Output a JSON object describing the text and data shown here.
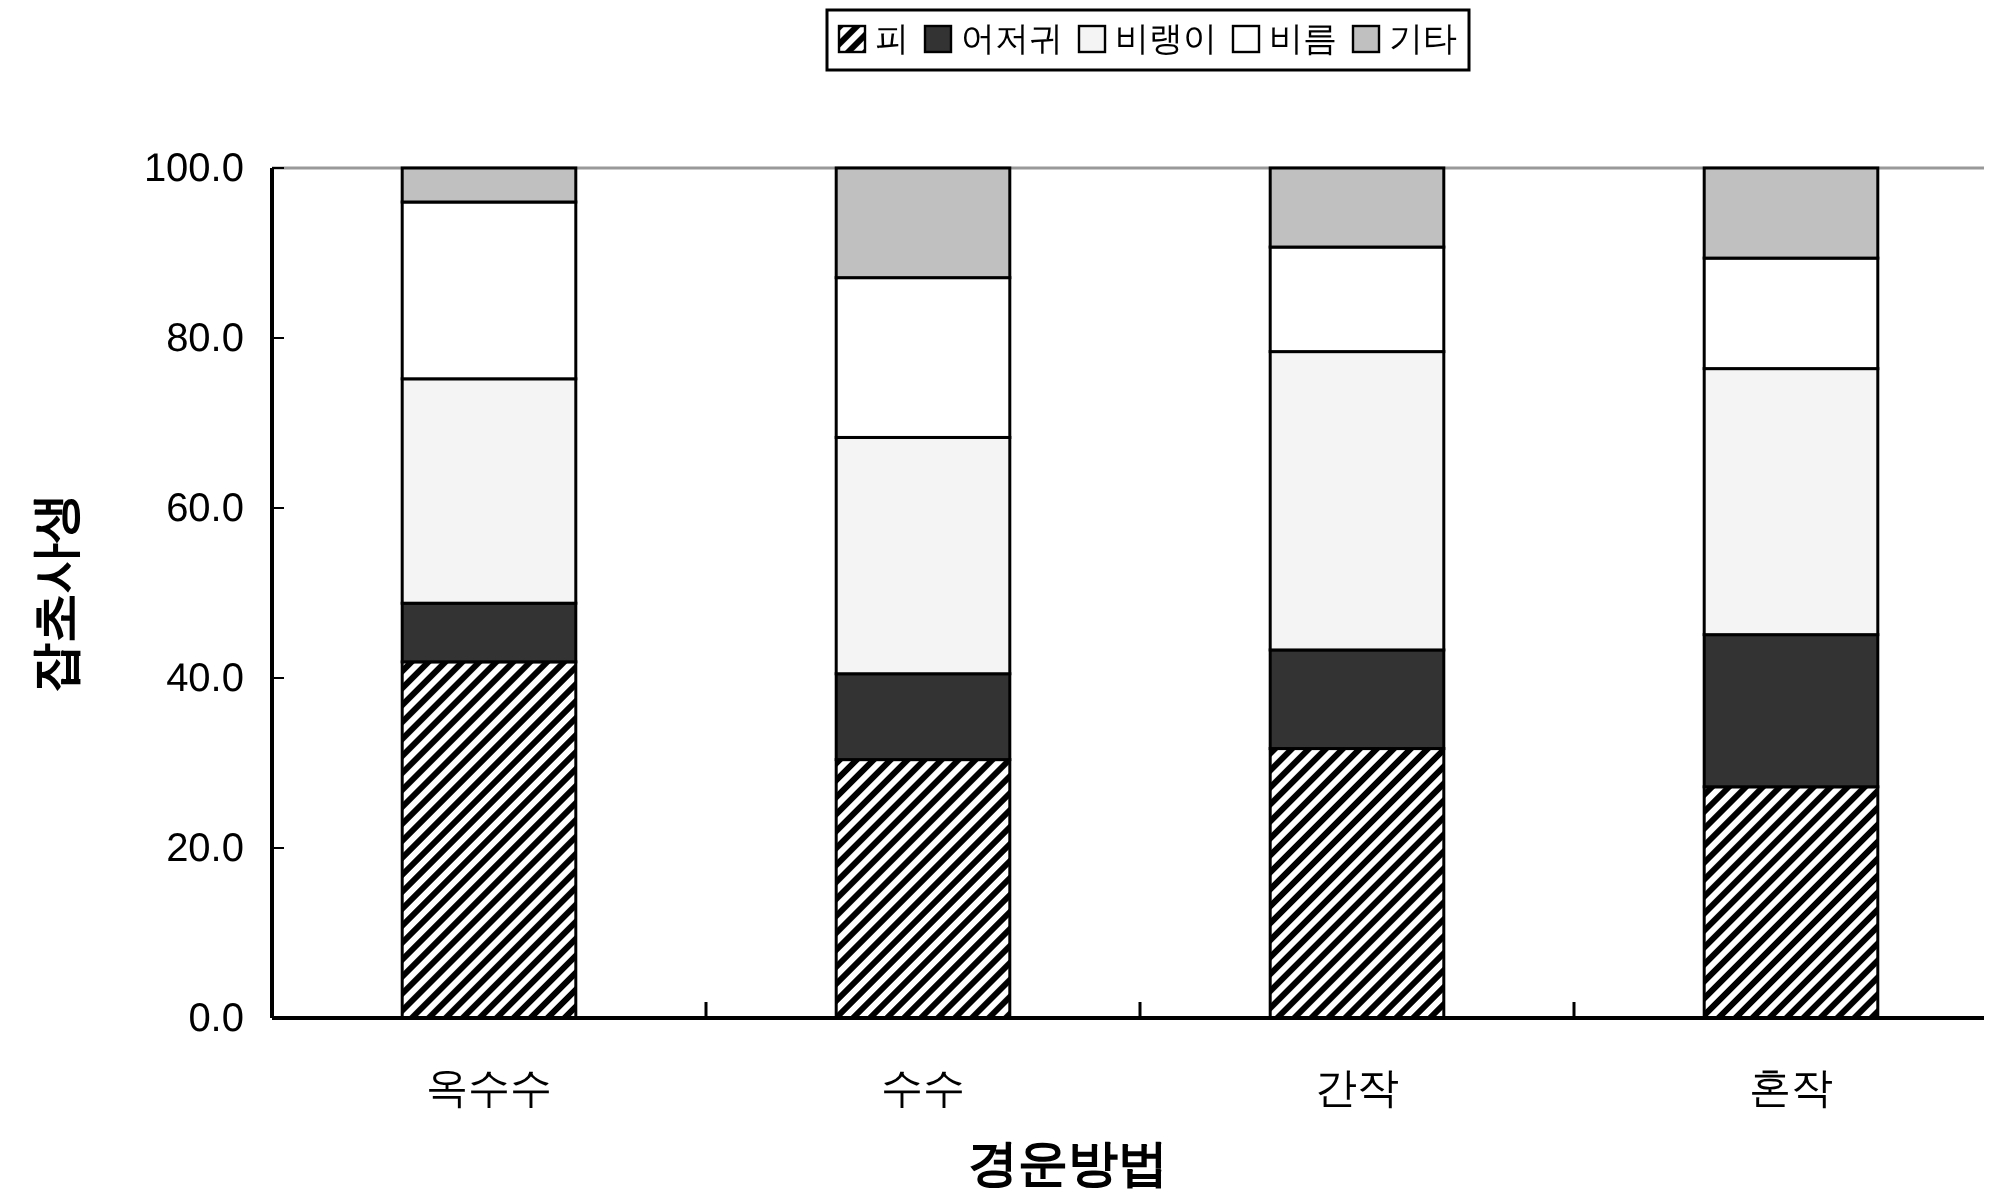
{
  "chart_data": {
    "type": "bar",
    "stacked": true,
    "xlabel": "경운방법",
    "ylabel": "잡초사생",
    "categories": [
      "옥수수",
      "수수",
      "간작",
      "혼작"
    ],
    "ylim": [
      0,
      100
    ],
    "yticks": [
      {
        "value": 0,
        "label": "0.0"
      },
      {
        "value": 20,
        "label": "20.0"
      },
      {
        "value": 40,
        "label": "40.0"
      },
      {
        "value": 60,
        "label": "60.0"
      },
      {
        "value": 80,
        "label": "80.0"
      },
      {
        "value": 100,
        "label": "100.0"
      }
    ],
    "legend": "top",
    "series": [
      {
        "name": "피",
        "color": "#000000",
        "values": [
          41.9,
          30.4,
          31.7,
          27.2
        ]
      },
      {
        "name": "어저귀",
        "color": "#333333",
        "values": [
          6.9,
          10.1,
          11.6,
          17.9
        ]
      },
      {
        "name": "비랭이",
        "color": "#f4f4f4",
        "values": [
          26.4,
          27.8,
          35.1,
          31.3
        ]
      },
      {
        "name": "비름",
        "color": "#ffffff",
        "values": [
          20.8,
          18.8,
          12.3,
          13.0
        ]
      },
      {
        "name": "기타",
        "color": "#c0c0c0",
        "values": [
          4.0,
          12.9,
          9.3,
          10.6
        ]
      }
    ]
  }
}
